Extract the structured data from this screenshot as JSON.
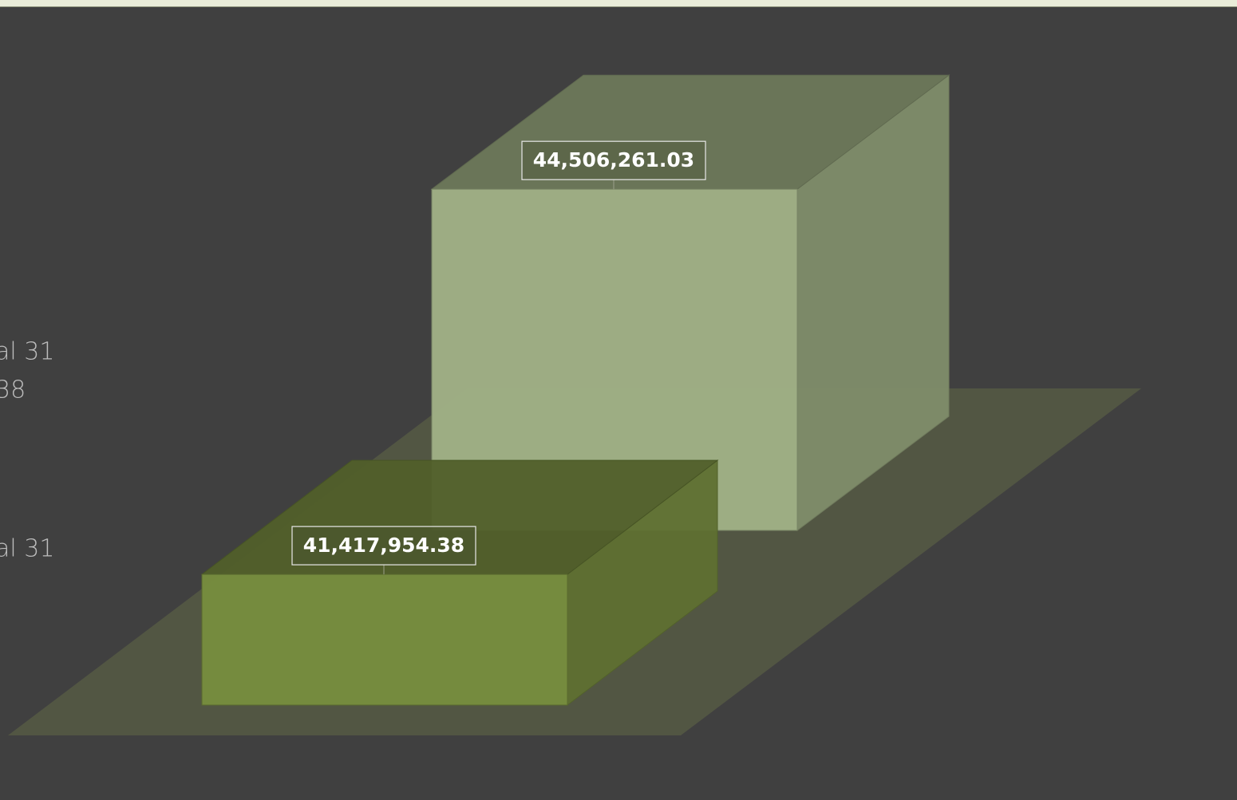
{
  "chart_data": {
    "type": "bar3d",
    "values": [
      44506261.03,
      41417954.38
    ],
    "value_labels": [
      "44,506,261.03",
      "41,417,954.38"
    ],
    "colors": [
      "#a0b085",
      "#778c3e"
    ],
    "ylim": [
      39500000,
      45000000
    ],
    "side_text": [
      "al 31",
      "38",
      "al 31"
    ]
  }
}
